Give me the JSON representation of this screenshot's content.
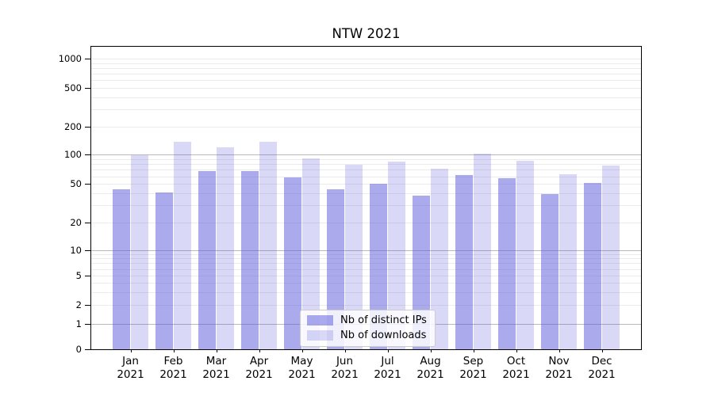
{
  "page_title": "NTW 2021",
  "chart_data": {
    "type": "bar",
    "title": "NTW 2021",
    "categories": [
      "Jan",
      "Feb",
      "Mar",
      "Apr",
      "May",
      "Jun",
      "Jul",
      "Aug",
      "Sep",
      "Oct",
      "Nov",
      "Dec"
    ],
    "year_label": "2021",
    "series": [
      {
        "id": "distinct-ips",
        "name": "Nb of distinct IPs",
        "color": "rgba(85,85,220,0.5)",
        "color_hex_on_white": "#aaaaee",
        "values": [
          43,
          40,
          66,
          66,
          57,
          43,
          49,
          37,
          61,
          56,
          39,
          50
        ]
      },
      {
        "id": "downloads",
        "name": "Nb of downloads",
        "color": "rgba(85,85,220,0.225)",
        "color_hex_on_white": "#d9d9f6",
        "values": [
          96,
          134,
          118,
          134,
          90,
          78,
          84,
          71,
          100,
          85,
          62,
          76
        ]
      }
    ],
    "xlabel": "",
    "ylabel": "",
    "y_axis": {
      "scale": "symlog-like (log above ~5, compressed linear toward 0)",
      "tick_values": [
        0,
        1,
        2,
        5,
        10,
        20,
        50,
        100,
        200,
        500,
        1000
      ],
      "tick_labels": [
        "0",
        "1",
        "2",
        "5",
        "10",
        "20",
        "50",
        "100",
        "200",
        "500",
        "1000"
      ],
      "major_grid_values": [
        1,
        10,
        100
      ],
      "minor_grid_values": [
        2,
        3,
        4,
        5,
        6,
        7,
        8,
        9,
        20,
        30,
        40,
        50,
        60,
        70,
        80,
        90,
        200,
        300,
        400,
        500,
        600,
        700,
        800,
        900,
        1000
      ],
      "ylim": [
        0,
        1300
      ]
    },
    "legend": {
      "position": "lower center",
      "entries": [
        "Nb of distinct IPs",
        "Nb of downloads"
      ]
    },
    "grid": true,
    "layout_hints": {
      "tick_fractions": [
        [
          0,
          1.0
        ],
        [
          1,
          0.9164
        ],
        [
          2,
          0.8538
        ],
        [
          5,
          0.7567
        ],
        [
          10,
          0.6723
        ],
        [
          20,
          0.5809
        ],
        [
          50,
          0.4538
        ],
        [
          100,
          0.3572
        ],
        [
          200,
          0.265
        ],
        [
          500,
          0.1358
        ],
        [
          1000,
          0.0392
        ]
      ]
    }
  },
  "colors": {
    "major_grid": "#b9b9b9",
    "minor_grid": "#ebebeb",
    "spine": "#000000",
    "legend_border": "#cccccc"
  }
}
